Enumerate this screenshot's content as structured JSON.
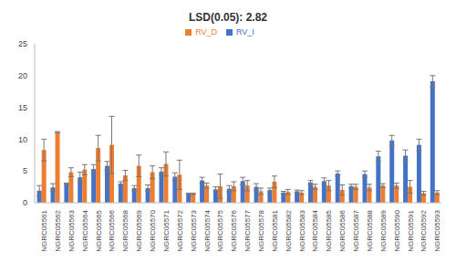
{
  "chart_data": {
    "type": "bar",
    "title": "LSD(0.05): 2.82",
    "categories": [
      "NGRC05561",
      "NGRC05562",
      "NGRC05563",
      "NGRC05564",
      "NGRC05565",
      "NGRC05566",
      "NGRC05568",
      "NGRC05569",
      "NGRC05570",
      "NGRC05571",
      "NGRC05572",
      "NGRC05573",
      "NGRC05574",
      "NGRC05575",
      "NGRC05576",
      "NGRC05577",
      "NGRC05578",
      "NGRC05581",
      "NGRC05582",
      "NGRC05583",
      "NGRC05584",
      "NGRC05585",
      "NGRC05586",
      "NGRC05587",
      "NGRC05588",
      "NGRC05589",
      "NGRC05590",
      "NGRC05591",
      "NGRC05592",
      "NGRC05593"
    ],
    "series": [
      {
        "name": "RV_I",
        "color": "#4472c4",
        "values": [
          1.9,
          2.4,
          3.0,
          4.0,
          5.3,
          5.8,
          3.0,
          2.3,
          2.3,
          4.9,
          4.1,
          1.4,
          3.5,
          2.1,
          2.2,
          3.4,
          2.5,
          2.0,
          1.6,
          1.8,
          3.2,
          3.4,
          4.6,
          2.6,
          4.5,
          7.3,
          9.8,
          7.4,
          9.1,
          19.1
        ],
        "error": [
          0.8,
          0.6,
          0.1,
          0.8,
          0.7,
          0.7,
          0.3,
          0.4,
          0.5,
          0.6,
          0.6,
          0.1,
          0.5,
          0.4,
          0.5,
          0.6,
          0.5,
          0.3,
          0.2,
          0.2,
          0.3,
          0.5,
          0.4,
          0.3,
          0.5,
          0.8,
          0.8,
          0.9,
          0.9,
          0.9
        ]
      },
      {
        "name": "RV_D",
        "color": "#ed7d31",
        "values": [
          8.3,
          11.1,
          4.8,
          5.2,
          8.6,
          9.1,
          4.3,
          5.8,
          4.8,
          6.1,
          4.4,
          1.4,
          2.7,
          2.6,
          2.6,
          2.7,
          1.8,
          3.3,
          1.7,
          1.6,
          2.5,
          2.7,
          2.0,
          2.5,
          2.4,
          2.7,
          2.7,
          2.5,
          1.5,
          1.6
        ],
        "error": [
          1.7,
          0.1,
          0.7,
          0.8,
          2.0,
          4.5,
          0.8,
          1.7,
          1.0,
          1.9,
          2.3,
          0.1,
          0.4,
          1.9,
          0.7,
          0.8,
          0.5,
          0.9,
          0.4,
          0.3,
          0.4,
          0.8,
          0.8,
          0.4,
          0.5,
          0.3,
          0.4,
          1.0,
          0.3,
          0.3
        ]
      }
    ],
    "ylim": [
      0,
      25
    ],
    "yticks": [
      0,
      5,
      10,
      15,
      20,
      25
    ],
    "grid": false,
    "legend": "top"
  }
}
